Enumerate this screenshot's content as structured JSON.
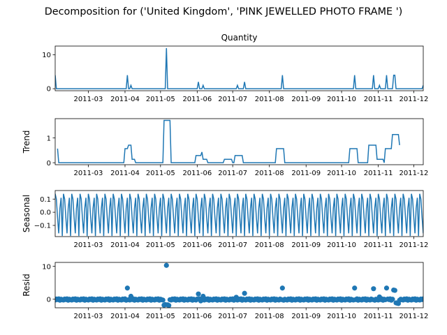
{
  "figure": {
    "suptitle": "Decomposition for ('United Kingdom', 'PINK JEWELLED PHOTO FRAME ')"
  },
  "colors": {
    "series": "#1f77b4",
    "axis": "#000000",
    "background": "#ffffff"
  },
  "chart_data": [
    {
      "type": "line",
      "title": "Quantity",
      "ylabel": "",
      "x_range": [
        "2011-02-01",
        "2011-12-09"
      ],
      "ylim": [
        -0.6,
        12.6
      ],
      "yticks": [
        0,
        10
      ],
      "xtick_labels": [
        "2011-03",
        "2011-04",
        "2011-05",
        "2011-06",
        "2011-07",
        "2011-08",
        "2011-09",
        "2011-10",
        "2011-11",
        "2011-12"
      ],
      "baseline": 0,
      "spikes": [
        {
          "date": "2011-02-01",
          "value": 4
        },
        {
          "date": "2011-04-03",
          "value": 4
        },
        {
          "date": "2011-04-06",
          "value": 1
        },
        {
          "date": "2011-05-06",
          "value": 12
        },
        {
          "date": "2011-06-02",
          "value": 2
        },
        {
          "date": "2011-06-06",
          "value": 1
        },
        {
          "date": "2011-07-05",
          "value": 1
        },
        {
          "date": "2011-07-11",
          "value": 2
        },
        {
          "date": "2011-08-12",
          "value": 4
        },
        {
          "date": "2011-10-12",
          "value": 4
        },
        {
          "date": "2011-10-28",
          "value": 4
        },
        {
          "date": "2011-11-02",
          "value": 1
        },
        {
          "date": "2011-11-08",
          "value": 4
        },
        {
          "date": "2011-11-14",
          "value": 4
        },
        {
          "date": "2011-11-15",
          "value": 4
        },
        {
          "date": "2011-12-09",
          "value": 1
        }
      ]
    },
    {
      "type": "line",
      "title": "",
      "ylabel": "Trend",
      "x_range": [
        "2011-02-01",
        "2011-12-09"
      ],
      "ylim": [
        -0.08,
        1.78
      ],
      "yticks": [
        0,
        1
      ],
      "xtick_labels": [
        "2011-03",
        "2011-04",
        "2011-05",
        "2011-06",
        "2011-07",
        "2011-08",
        "2011-09",
        "2011-10",
        "2011-11",
        "2011-12"
      ],
      "segments": [
        {
          "start": "2011-02-03",
          "end": "2011-02-03",
          "value": 0.57
        },
        {
          "start": "2011-02-04",
          "end": "2011-03-31",
          "value": 0
        },
        {
          "start": "2011-04-01",
          "end": "2011-04-03",
          "value": 0.57
        },
        {
          "start": "2011-04-04",
          "end": "2011-04-06",
          "value": 0.71
        },
        {
          "start": "2011-04-07",
          "end": "2011-04-09",
          "value": 0.14
        },
        {
          "start": "2011-04-10",
          "end": "2011-05-03",
          "value": 0
        },
        {
          "start": "2011-05-04",
          "end": "2011-05-09",
          "value": 1.71
        },
        {
          "start": "2011-05-10",
          "end": "2011-05-30",
          "value": 0
        },
        {
          "start": "2011-05-31",
          "end": "2011-06-04",
          "value": 0.29
        },
        {
          "start": "2011-06-05",
          "end": "2011-06-05",
          "value": 0.43
        },
        {
          "start": "2011-06-06",
          "end": "2011-06-09",
          "value": 0.14
        },
        {
          "start": "2011-06-10",
          "end": "2011-06-23",
          "value": 0
        },
        {
          "start": "2011-06-24",
          "end": "2011-06-30",
          "value": 0.14
        },
        {
          "start": "2011-07-01",
          "end": "2011-07-02",
          "value": 0
        },
        {
          "start": "2011-07-03",
          "end": "2011-07-09",
          "value": 0.29
        },
        {
          "start": "2011-07-10",
          "end": "2011-08-06",
          "value": 0
        },
        {
          "start": "2011-08-07",
          "end": "2011-08-13",
          "value": 0.57
        },
        {
          "start": "2011-08-14",
          "end": "2011-10-07",
          "value": 0
        },
        {
          "start": "2011-10-08",
          "end": "2011-10-14",
          "value": 0.57
        },
        {
          "start": "2011-10-15",
          "end": "2011-10-23",
          "value": 0
        },
        {
          "start": "2011-10-24",
          "end": "2011-10-30",
          "value": 0.71
        },
        {
          "start": "2011-10-31",
          "end": "2011-11-05",
          "value": 0.14
        },
        {
          "start": "2011-11-06",
          "end": "2011-11-06",
          "value": 0
        },
        {
          "start": "2011-11-07",
          "end": "2011-11-12",
          "value": 0.57
        },
        {
          "start": "2011-11-13",
          "end": "2011-11-18",
          "value": 1.14
        },
        {
          "start": "2011-11-19",
          "end": "2011-11-19",
          "value": 0.71
        }
      ]
    },
    {
      "type": "line",
      "title": "",
      "ylabel": "Seasonal",
      "x_range": [
        "2011-02-01",
        "2011-12-09"
      ],
      "ylim": [
        -0.185,
        0.165
      ],
      "yticks": [
        0.1,
        0.0,
        -0.1
      ],
      "ytick_labels": [
        "0.1",
        "0.0",
        "−0.1"
      ],
      "xtick_labels": [
        "2011-03",
        "2011-04",
        "2011-05",
        "2011-06",
        "2011-07",
        "2011-08",
        "2011-09",
        "2011-10",
        "2011-11",
        "2011-12"
      ],
      "period_days": 7,
      "weekly_pattern": [
        0.14,
        0.1,
        -0.04,
        -0.16,
        0.03,
        0.11,
        -0.18
      ]
    },
    {
      "type": "scatter",
      "title": "",
      "ylabel": "Resid",
      "x_range": [
        "2011-02-01",
        "2011-12-09"
      ],
      "ylim": [
        -2.6,
        11.2
      ],
      "yticks": [
        0,
        10
      ],
      "xtick_labels": [
        "2011-03",
        "2011-04",
        "2011-05",
        "2011-06",
        "2011-07",
        "2011-08",
        "2011-09",
        "2011-10",
        "2011-11",
        "2011-12"
      ],
      "outliers": [
        {
          "date": "2011-04-03",
          "value": 3.4
        },
        {
          "date": "2011-04-06",
          "value": 0.9
        },
        {
          "date": "2011-05-04",
          "value": -1.8
        },
        {
          "date": "2011-05-05",
          "value": -1.6
        },
        {
          "date": "2011-05-06",
          "value": 10.3
        },
        {
          "date": "2011-05-07",
          "value": -1.7
        },
        {
          "date": "2011-05-08",
          "value": -1.9
        },
        {
          "date": "2011-06-02",
          "value": 1.6
        },
        {
          "date": "2011-06-06",
          "value": 0.9
        },
        {
          "date": "2011-06-04",
          "value": -0.5
        },
        {
          "date": "2011-07-04",
          "value": 0.6
        },
        {
          "date": "2011-07-11",
          "value": 1.8
        },
        {
          "date": "2011-08-12",
          "value": 3.4
        },
        {
          "date": "2011-10-12",
          "value": 3.4
        },
        {
          "date": "2011-10-28",
          "value": 3.2
        },
        {
          "date": "2011-11-02",
          "value": 0.7
        },
        {
          "date": "2011-11-08",
          "value": 3.4
        },
        {
          "date": "2011-11-14",
          "value": 2.8
        },
        {
          "date": "2011-11-15",
          "value": 2.7
        },
        {
          "date": "2011-11-16",
          "value": -1.1
        },
        {
          "date": "2011-11-17",
          "value": -1.2
        },
        {
          "date": "2011-11-18",
          "value": -1.3
        }
      ]
    }
  ]
}
